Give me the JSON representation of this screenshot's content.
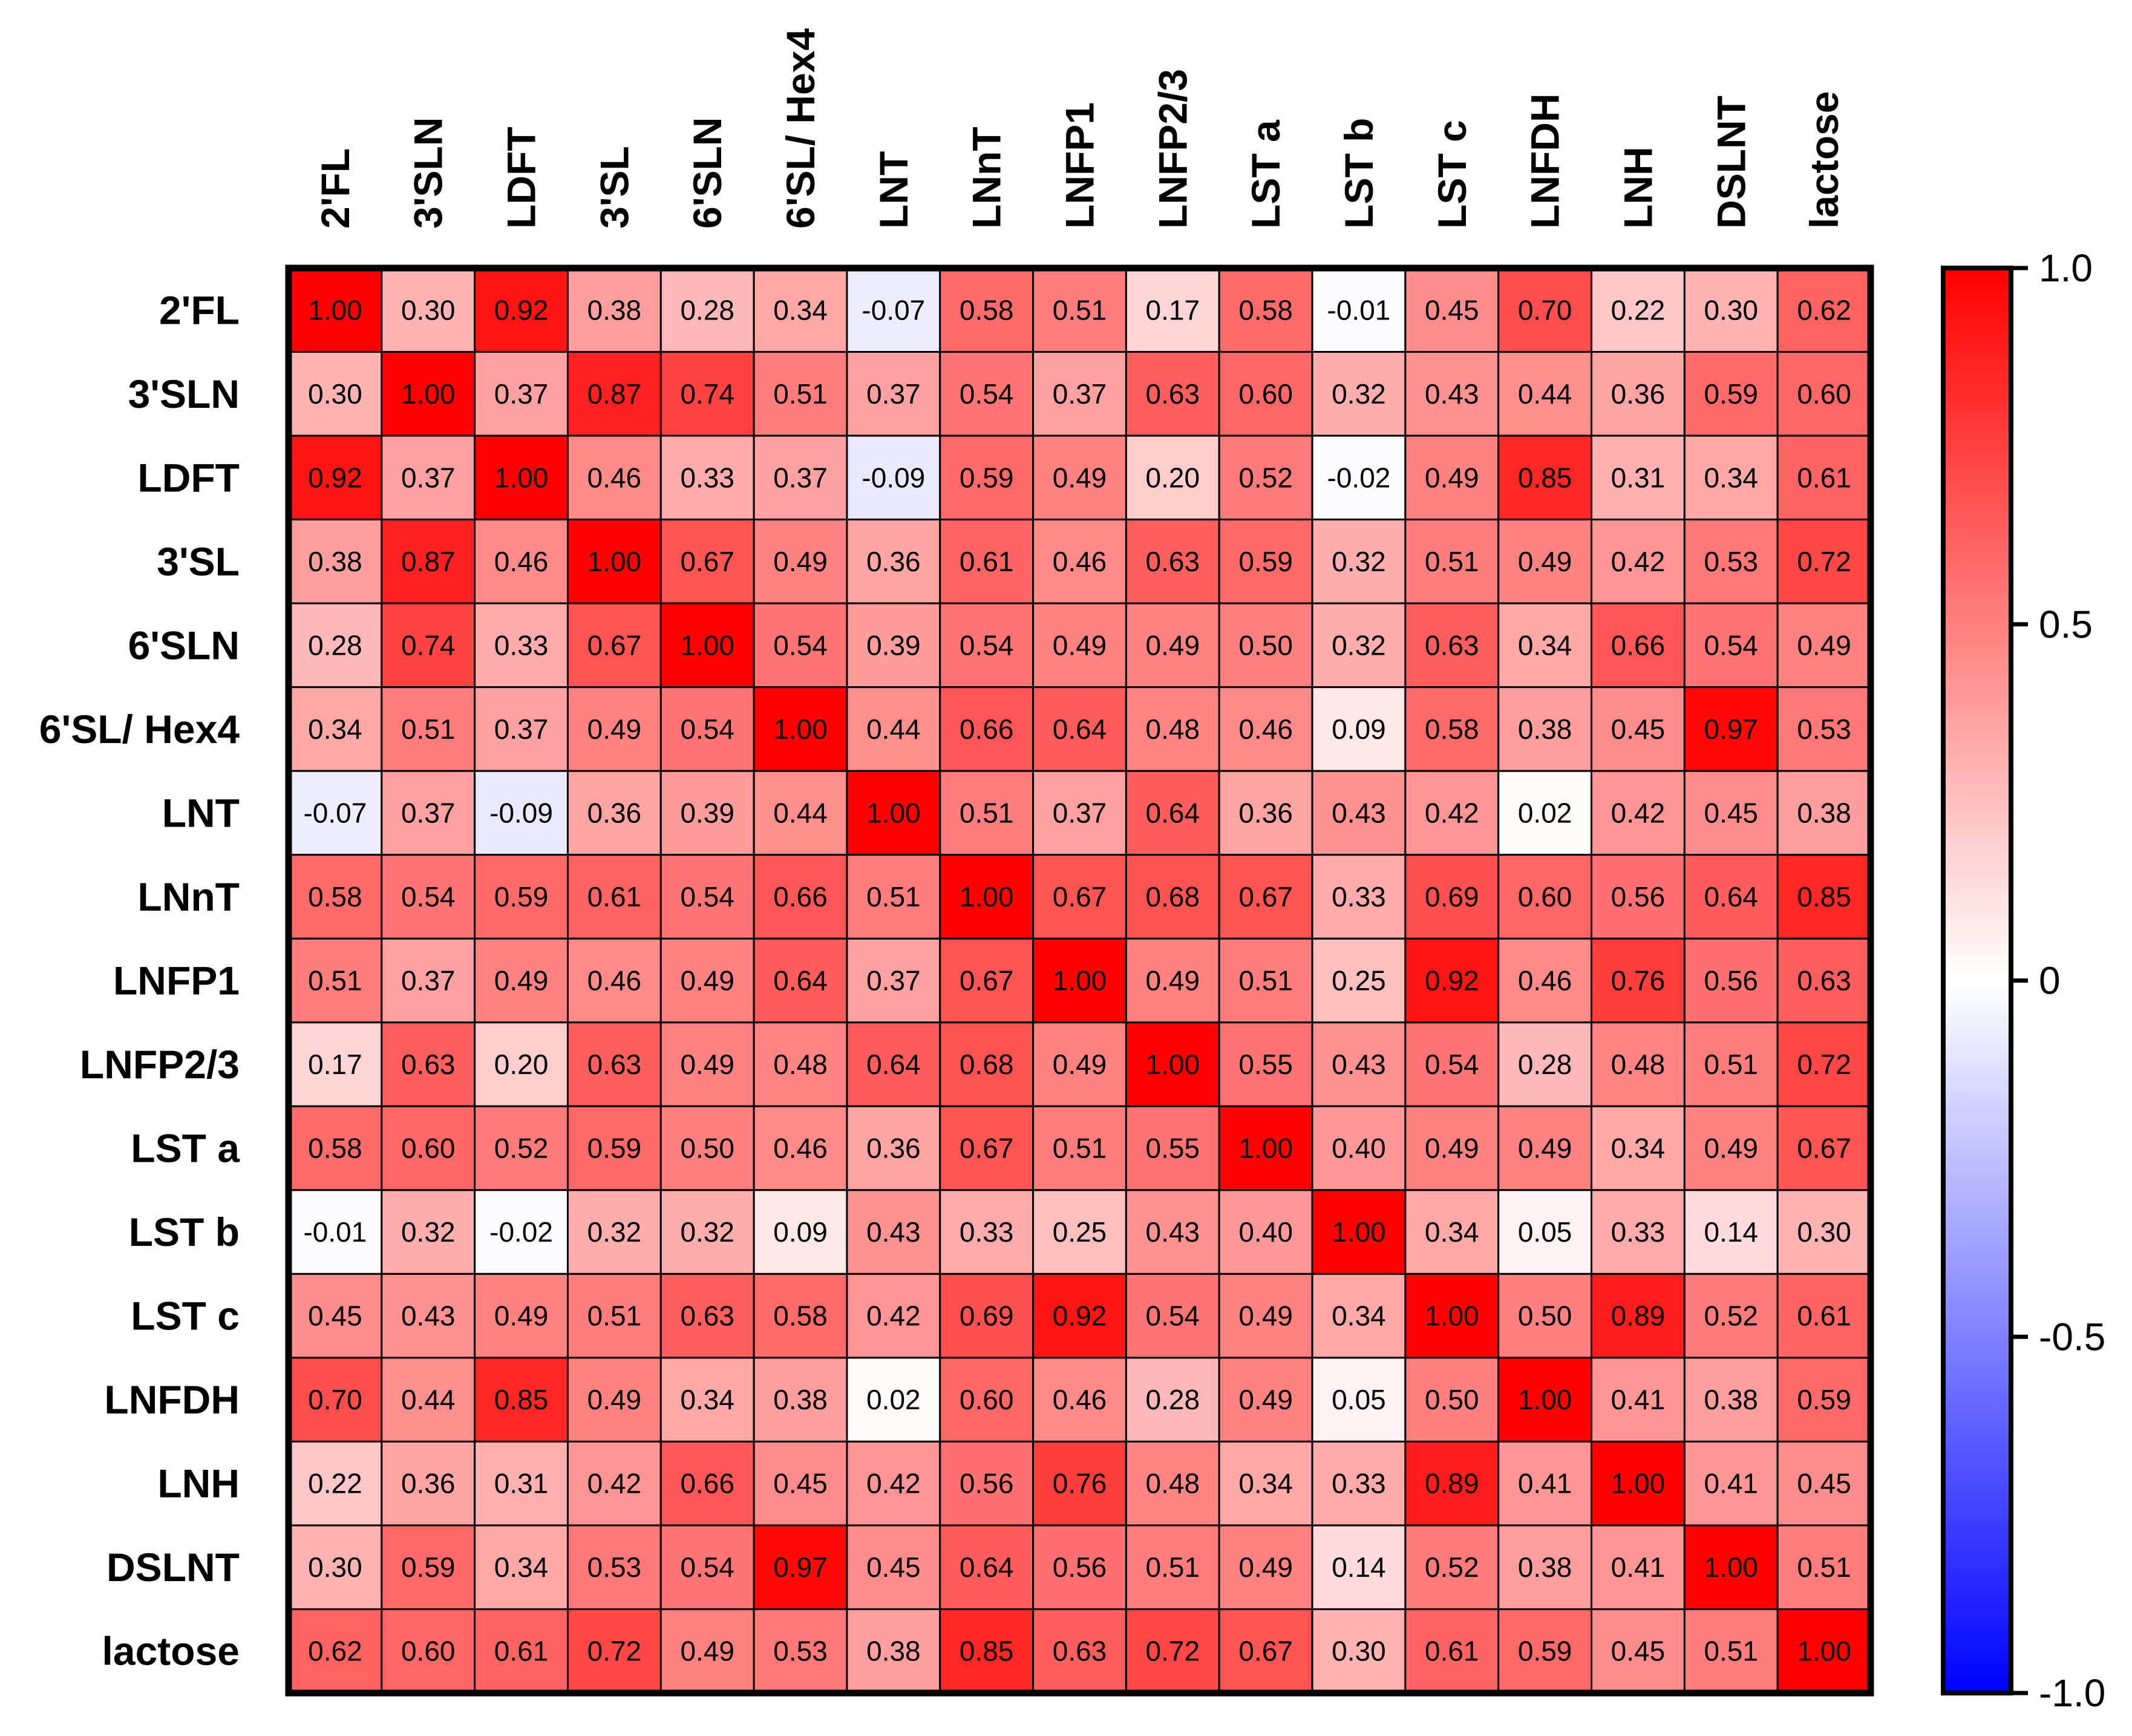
{
  "chart_data": {
    "type": "heatmap",
    "title": "",
    "labels": [
      "2'FL",
      "3'SLN",
      "LDFT",
      "3'SL",
      "6'SLN",
      "6'SL/ Hex4",
      "LNT",
      "LNnT",
      "LNFP1",
      "LNFP2/3",
      "LST a",
      "LST b",
      "LST c",
      "LNFDH",
      "LNH",
      "DSLNT",
      "lactose"
    ],
    "matrix": [
      [
        "1.00",
        "0.30",
        "0.92",
        "0.38",
        "0.28",
        "0.34",
        "-0.07",
        "0.58",
        "0.51",
        "0.17",
        "0.58",
        "-0.01",
        "0.45",
        "0.70",
        "0.22",
        "0.30",
        "0.62"
      ],
      [
        "0.30",
        "1.00",
        "0.37",
        "0.87",
        "0.74",
        "0.51",
        "0.37",
        "0.54",
        "0.37",
        "0.63",
        "0.60",
        "0.32",
        "0.43",
        "0.44",
        "0.36",
        "0.59",
        "0.60"
      ],
      [
        "0.92",
        "0.37",
        "1.00",
        "0.46",
        "0.33",
        "0.37",
        "-0.09",
        "0.59",
        "0.49",
        "0.20",
        "0.52",
        "-0.02",
        "0.49",
        "0.85",
        "0.31",
        "0.34",
        "0.61"
      ],
      [
        "0.38",
        "0.87",
        "0.46",
        "1.00",
        "0.67",
        "0.49",
        "0.36",
        "0.61",
        "0.46",
        "0.63",
        "0.59",
        "0.32",
        "0.51",
        "0.49",
        "0.42",
        "0.53",
        "0.72"
      ],
      [
        "0.28",
        "0.74",
        "0.33",
        "0.67",
        "1.00",
        "0.54",
        "0.39",
        "0.54",
        "0.49",
        "0.49",
        "0.50",
        "0.32",
        "0.63",
        "0.34",
        "0.66",
        "0.54",
        "0.49"
      ],
      [
        "0.34",
        "0.51",
        "0.37",
        "0.49",
        "0.54",
        "1.00",
        "0.44",
        "0.66",
        "0.64",
        "0.48",
        "0.46",
        "0.09",
        "0.58",
        "0.38",
        "0.45",
        "0.97",
        "0.53"
      ],
      [
        "-0.07",
        "0.37",
        "-0.09",
        "0.36",
        "0.39",
        "0.44",
        "1.00",
        "0.51",
        "0.37",
        "0.64",
        "0.36",
        "0.43",
        "0.42",
        "0.02",
        "0.42",
        "0.45",
        "0.38"
      ],
      [
        "0.58",
        "0.54",
        "0.59",
        "0.61",
        "0.54",
        "0.66",
        "0.51",
        "1.00",
        "0.67",
        "0.68",
        "0.67",
        "0.33",
        "0.69",
        "0.60",
        "0.56",
        "0.64",
        "0.85"
      ],
      [
        "0.51",
        "0.37",
        "0.49",
        "0.46",
        "0.49",
        "0.64",
        "0.37",
        "0.67",
        "1.00",
        "0.49",
        "0.51",
        "0.25",
        "0.92",
        "0.46",
        "0.76",
        "0.56",
        "0.63"
      ],
      [
        "0.17",
        "0.63",
        "0.20",
        "0.63",
        "0.49",
        "0.48",
        "0.64",
        "0.68",
        "0.49",
        "1.00",
        "0.55",
        "0.43",
        "0.54",
        "0.28",
        "0.48",
        "0.51",
        "0.72"
      ],
      [
        "0.58",
        "0.60",
        "0.52",
        "0.59",
        "0.50",
        "0.46",
        "0.36",
        "0.67",
        "0.51",
        "0.55",
        "1.00",
        "0.40",
        "0.49",
        "0.49",
        "0.34",
        "0.49",
        "0.67"
      ],
      [
        "-0.01",
        "0.32",
        "-0.02",
        "0.32",
        "0.32",
        "0.09",
        "0.43",
        "0.33",
        "0.25",
        "0.43",
        "0.40",
        "1.00",
        "0.34",
        "0.05",
        "0.33",
        "0.14",
        "0.30"
      ],
      [
        "0.45",
        "0.43",
        "0.49",
        "0.51",
        "0.63",
        "0.58",
        "0.42",
        "0.69",
        "0.92",
        "0.54",
        "0.49",
        "0.34",
        "1.00",
        "0.50",
        "0.89",
        "0.52",
        "0.61"
      ],
      [
        "0.70",
        "0.44",
        "0.85",
        "0.49",
        "0.34",
        "0.38",
        "0.02",
        "0.60",
        "0.46",
        "0.28",
        "0.49",
        "0.05",
        "0.50",
        "1.00",
        "0.41",
        "0.38",
        "0.59"
      ],
      [
        "0.22",
        "0.36",
        "0.31",
        "0.42",
        "0.66",
        "0.45",
        "0.42",
        "0.56",
        "0.76",
        "0.48",
        "0.34",
        "0.33",
        "0.89",
        "0.41",
        "1.00",
        "0.41",
        "0.45"
      ],
      [
        "0.30",
        "0.59",
        "0.34",
        "0.53",
        "0.54",
        "0.97",
        "0.45",
        "0.64",
        "0.56",
        "0.51",
        "0.49",
        "0.14",
        "0.52",
        "0.38",
        "0.41",
        "1.00",
        "0.51"
      ],
      [
        "0.62",
        "0.60",
        "0.61",
        "0.72",
        "0.49",
        "0.53",
        "0.38",
        "0.85",
        "0.63",
        "0.72",
        "0.67",
        "0.30",
        "0.61",
        "0.59",
        "0.45",
        "0.51",
        "1.00"
      ]
    ],
    "colorbar": {
      "range": [
        -1.0,
        1.0
      ],
      "ticks": [
        "1.0",
        "0.5",
        "0",
        "-0.5",
        "-1.0"
      ],
      "colors": {
        "low": "#0000ff",
        "mid": "#ffffff",
        "high": "#ff0000"
      }
    }
  }
}
